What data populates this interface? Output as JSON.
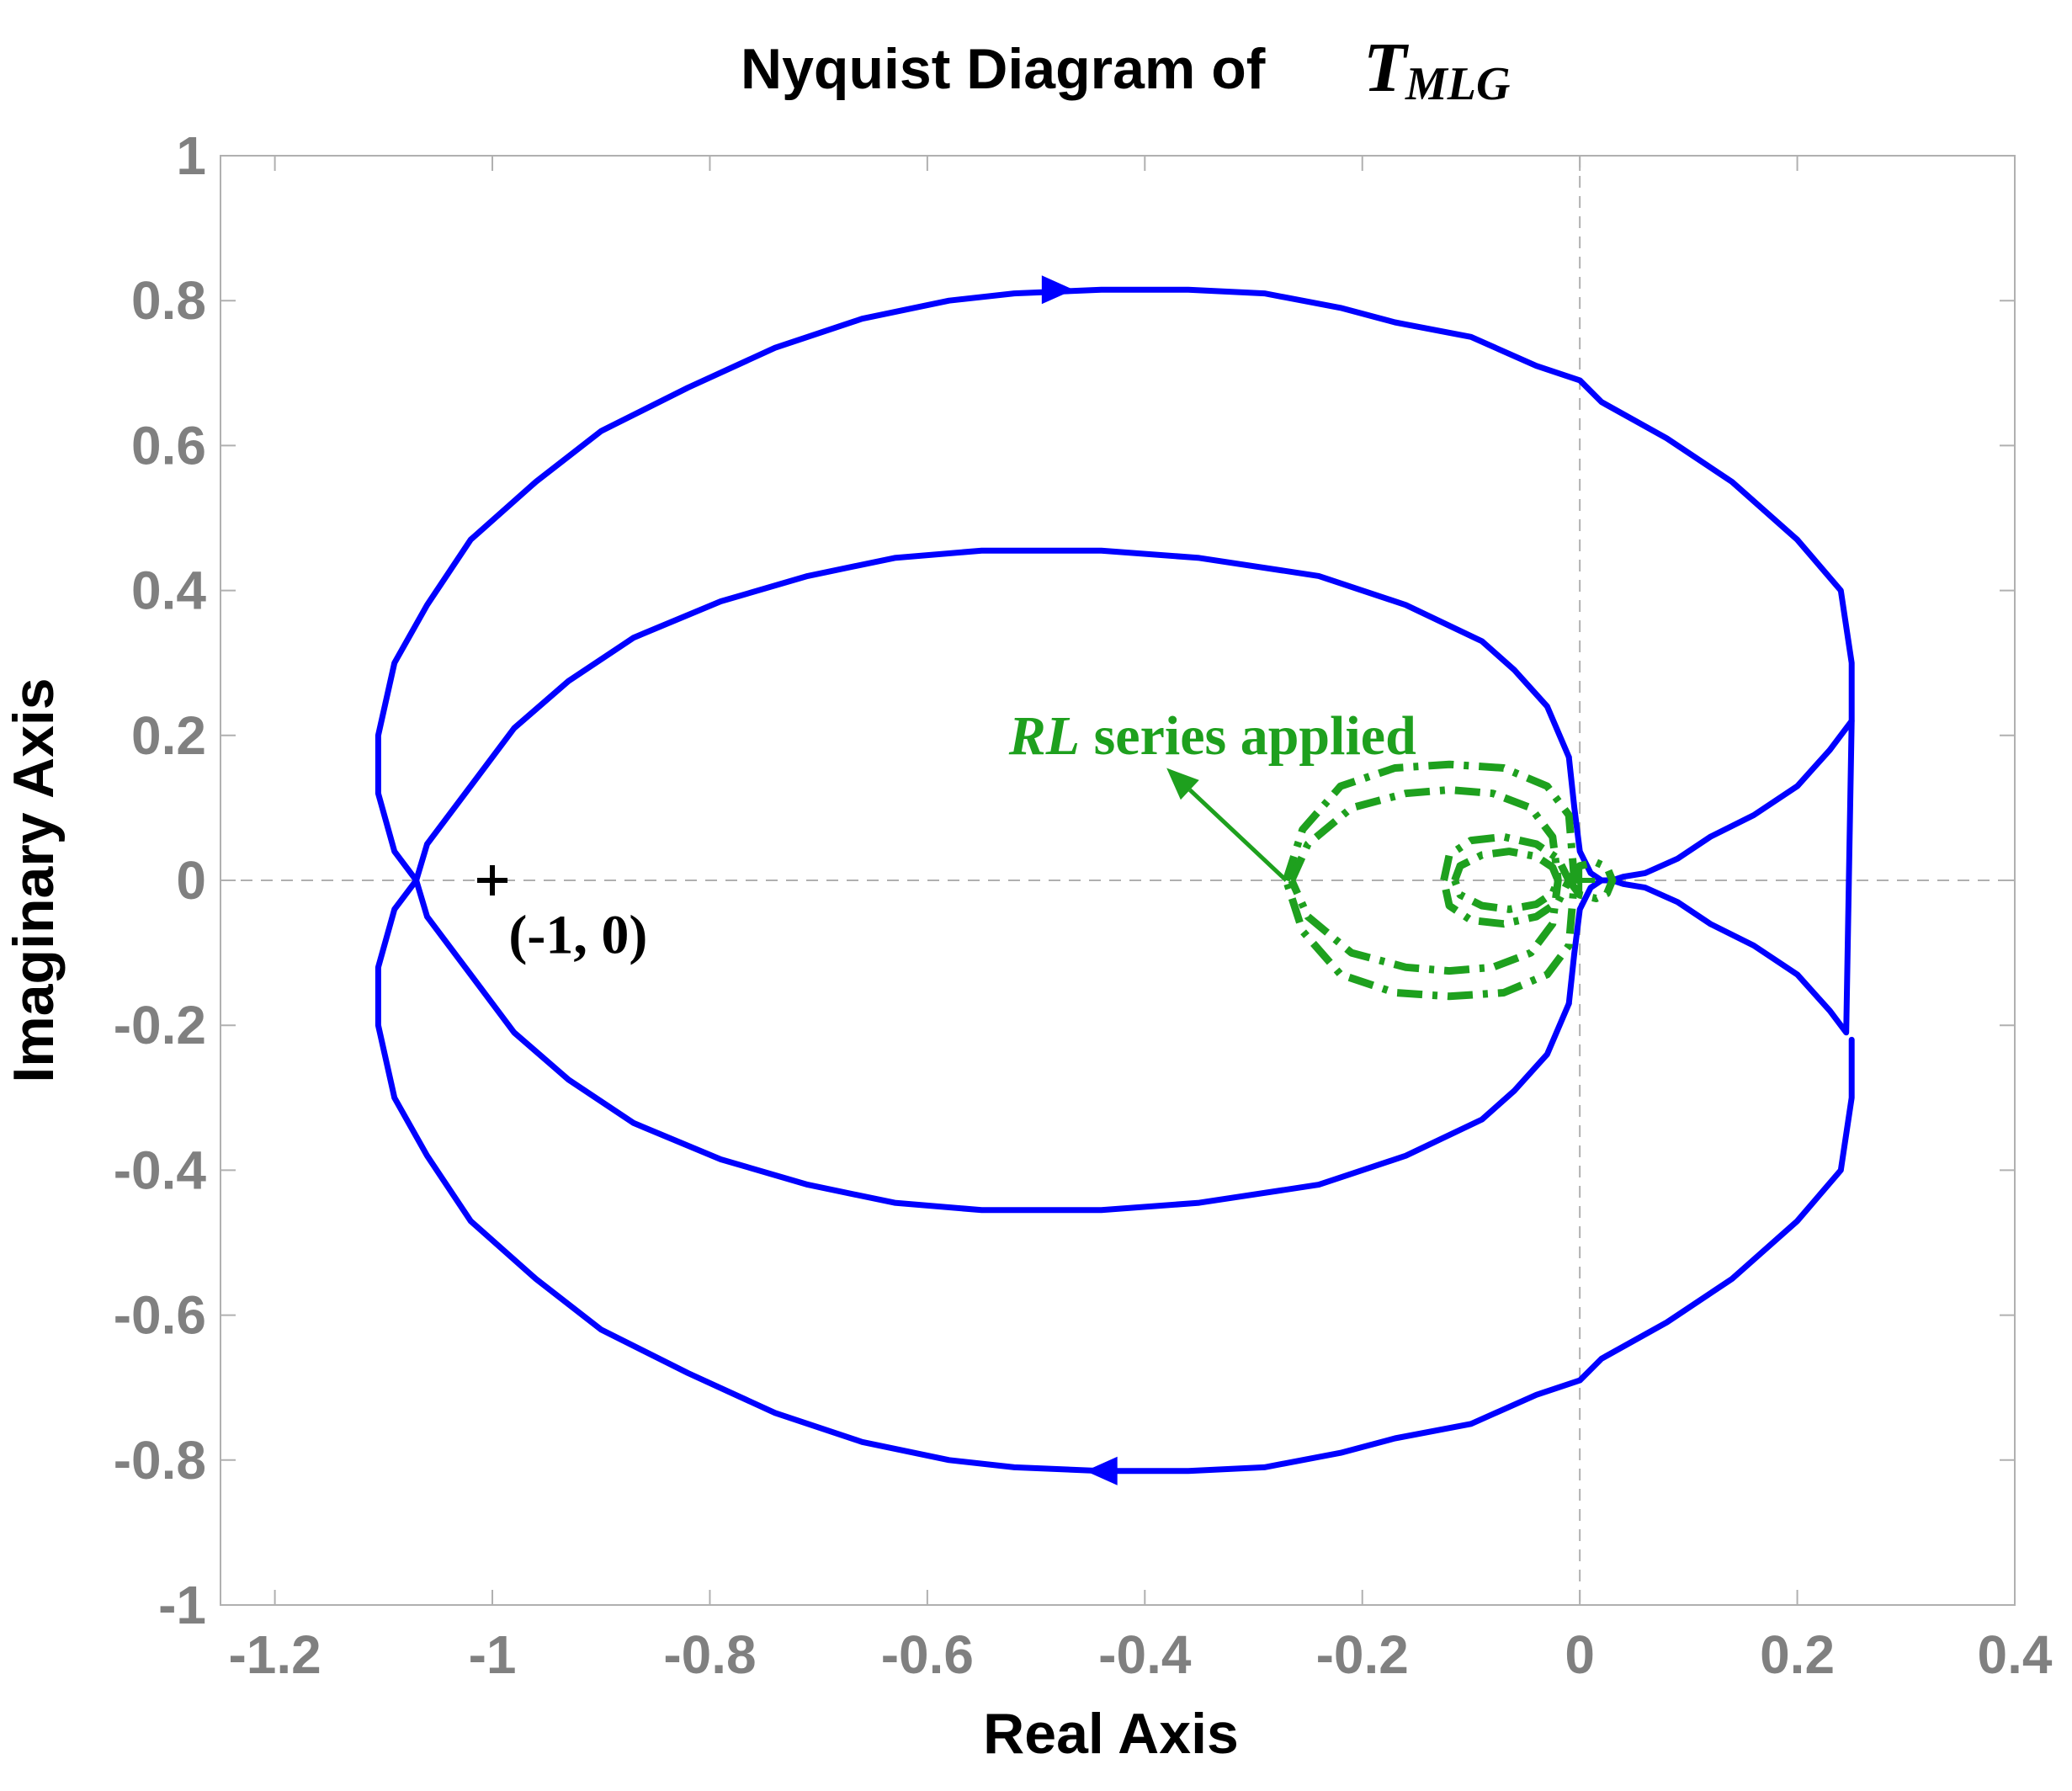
{
  "chart_data": {
    "type": "line",
    "title_text": "Nyquist Diagram of",
    "title_symbol": "T",
    "title_subscript": "MLG",
    "xlabel": "Real Axis",
    "ylabel": "Imaginary Axis",
    "xlim": [
      -1.25,
      0.4
    ],
    "ylim": [
      -1,
      1
    ],
    "xticks": [
      -1.2,
      -1,
      -0.8,
      -0.6,
      -0.4,
      -0.2,
      0,
      0.2,
      0.4
    ],
    "xtick_labels": [
      "-1.2",
      "-1",
      "-0.8",
      "-0.6",
      "-0.4",
      "-0.2",
      "0",
      "0.2",
      "0.4"
    ],
    "yticks": [
      -1,
      -0.8,
      -0.6,
      -0.4,
      -0.2,
      0,
      0.2,
      0.4,
      0.6,
      0.8,
      1
    ],
    "ytick_labels": [
      "-1",
      "-0.8",
      "-0.6",
      "-0.4",
      "-0.2",
      "0",
      "0.2",
      "0.4",
      "0.6",
      "0.8",
      "1"
    ],
    "grid": false,
    "zero_lines": true,
    "series": [
      {
        "style": "solid",
        "color": "#0000ff",
        "x": [
          0.25,
          0.25,
          0.24,
          0.2,
          0.14,
          0.08,
          0.02,
          0.0,
          -0.04,
          -0.1,
          -0.17,
          -0.22,
          -0.29,
          -0.36,
          -0.44,
          -0.52,
          -0.58,
          -0.66,
          -0.74,
          -0.82,
          -0.9,
          -0.96,
          -1.02,
          -1.06,
          -1.09,
          -1.105,
          -1.105,
          -1.09,
          -1.07,
          -1.06,
          -1.02,
          -0.98,
          -0.93,
          -0.87,
          -0.79,
          -0.71,
          -0.63,
          -0.55,
          -0.44,
          -0.35,
          -0.24,
          -0.16,
          -0.09,
          -0.06,
          -0.03,
          -0.01
        ],
        "y": [
          0.22,
          0.3,
          0.4,
          0.47,
          0.55,
          0.61,
          0.66,
          0.69,
          0.71,
          0.75,
          0.77,
          0.79,
          0.81,
          0.815,
          0.815,
          0.81,
          0.8,
          0.775,
          0.735,
          0.68,
          0.62,
          0.55,
          0.47,
          0.38,
          0.3,
          0.2,
          0.12,
          0.04,
          0.0,
          -0.05,
          -0.13,
          -0.21,
          -0.275,
          -0.335,
          -0.385,
          -0.42,
          -0.445,
          -0.455,
          -0.455,
          -0.445,
          -0.42,
          -0.38,
          -0.33,
          -0.29,
          -0.24,
          -0.17
        ]
      },
      {
        "style": "solid",
        "color": "#0000ff",
        "x": [
          0.25,
          0.25,
          0.24,
          0.2,
          0.14,
          0.08,
          0.02,
          0.0,
          -0.04,
          -0.1,
          -0.17,
          -0.22,
          -0.29,
          -0.36,
          -0.44,
          -0.52,
          -0.58,
          -0.66,
          -0.74,
          -0.82,
          -0.9,
          -0.96,
          -1.02,
          -1.06,
          -1.09,
          -1.105,
          -1.105,
          -1.09,
          -1.07,
          -1.06,
          -1.02,
          -0.98,
          -0.93,
          -0.87,
          -0.79,
          -0.71,
          -0.63,
          -0.55,
          -0.44,
          -0.35,
          -0.24,
          -0.16,
          -0.09,
          -0.06,
          -0.03,
          -0.01
        ],
        "y": [
          -0.22,
          -0.3,
          -0.4,
          -0.47,
          -0.55,
          -0.61,
          -0.66,
          -0.69,
          -0.71,
          -0.75,
          -0.77,
          -0.79,
          -0.81,
          -0.815,
          -0.815,
          -0.81,
          -0.8,
          -0.775,
          -0.735,
          -0.68,
          -0.62,
          -0.55,
          -0.47,
          -0.38,
          -0.3,
          -0.2,
          -0.12,
          -0.04,
          0.0,
          0.05,
          0.13,
          0.21,
          0.275,
          0.335,
          0.385,
          0.42,
          0.445,
          0.455,
          0.455,
          0.445,
          0.42,
          0.38,
          0.33,
          0.29,
          0.24,
          0.17
        ]
      },
      {
        "style": "solid",
        "color": "#0000ff",
        "x": [
          -0.01,
          -0.005,
          0.0,
          0.01,
          0.02,
          0.03,
          0.04,
          0.06,
          0.09,
          0.12,
          0.16,
          0.2,
          0.23,
          0.245,
          0.25,
          0.245,
          0.23,
          0.2,
          0.16,
          0.12,
          0.09,
          0.06,
          0.04,
          0.03,
          0.02,
          0.01,
          0.0,
          -0.005,
          -0.01
        ],
        "y": [
          -0.17,
          -0.1,
          -0.04,
          -0.01,
          0.0,
          0.0,
          0.005,
          0.01,
          0.03,
          0.06,
          0.09,
          0.13,
          0.18,
          0.21,
          0.22,
          -0.21,
          -0.18,
          -0.13,
          -0.09,
          -0.06,
          -0.03,
          -0.01,
          -0.005,
          0.0,
          0.0,
          0.01,
          0.04,
          0.1,
          0.17
        ]
      },
      {
        "style": "dashdot",
        "color": "#1ea01e",
        "x": [
          -0.27,
          -0.255,
          -0.22,
          -0.17,
          -0.12,
          -0.07,
          -0.03,
          -0.01,
          -0.005,
          -0.01,
          -0.03,
          -0.07,
          -0.12,
          -0.17,
          -0.22,
          -0.255,
          -0.27
        ],
        "y": [
          0.0,
          0.07,
          0.13,
          0.155,
          0.16,
          0.155,
          0.13,
          0.09,
          0.0,
          -0.09,
          -0.13,
          -0.155,
          -0.16,
          -0.155,
          -0.13,
          -0.07,
          0.0
        ]
      },
      {
        "style": "dashdot",
        "color": "#1ea01e",
        "x": [
          -0.265,
          -0.25,
          -0.21,
          -0.16,
          -0.12,
          -0.08,
          -0.045,
          -0.025,
          -0.02,
          -0.025,
          -0.045,
          -0.08,
          -0.12,
          -0.16,
          -0.21,
          -0.25,
          -0.265
        ],
        "y": [
          0.0,
          0.05,
          0.1,
          0.12,
          0.125,
          0.12,
          0.1,
          0.06,
          0.0,
          -0.06,
          -0.1,
          -0.12,
          -0.125,
          -0.12,
          -0.1,
          -0.05,
          0.0
        ]
      },
      {
        "style": "dashdot",
        "color": "#1ea01e",
        "x": [
          -0.125,
          -0.12,
          -0.1,
          -0.07,
          -0.04,
          -0.02,
          -0.01,
          -0.02,
          -0.04,
          -0.07,
          -0.1,
          -0.12,
          -0.125
        ],
        "y": [
          0.0,
          0.035,
          0.055,
          0.06,
          0.05,
          0.03,
          0.0,
          -0.03,
          -0.05,
          -0.06,
          -0.055,
          -0.035,
          0.0
        ]
      },
      {
        "style": "dashdot",
        "color": "#1ea01e",
        "x": [
          -0.115,
          -0.11,
          -0.09,
          -0.065,
          -0.04,
          -0.025,
          -0.02,
          -0.025,
          -0.04,
          -0.065,
          -0.09,
          -0.11,
          -0.115
        ],
        "y": [
          0.0,
          0.02,
          0.035,
          0.04,
          0.033,
          0.018,
          0.0,
          -0.018,
          -0.033,
          -0.04,
          -0.035,
          -0.02,
          0.0
        ]
      },
      {
        "style": "dashdot",
        "color": "#1ea01e",
        "x": [
          -0.01,
          0.0,
          0.015,
          0.025,
          0.03,
          0.025,
          0.015,
          0.0,
          -0.01
        ],
        "y": [
          0.0,
          0.02,
          0.025,
          0.018,
          0.0,
          -0.018,
          -0.025,
          -0.02,
          0.0
        ]
      }
    ],
    "direction_arrows": [
      {
        "x": -0.47,
        "y": 0.815,
        "direction": "right",
        "color": "#0000ff"
      },
      {
        "x": -0.45,
        "y": -0.815,
        "direction": "left",
        "color": "#0000ff"
      }
    ],
    "markers": [
      {
        "x": -1,
        "y": 0,
        "symbol": "+",
        "color": "#000000"
      },
      {
        "x": 0.0,
        "y": 0.0,
        "symbol": "+",
        "color": "#1ea01e"
      }
    ],
    "annotations": [
      {
        "text_italic": "RL",
        "text": " series applied",
        "color": "#1ea01e",
        "x": -0.525,
        "y": 0.2
      },
      {
        "text": "(-1, 0)",
        "color": "#000000",
        "x": -0.985,
        "y": -0.075
      }
    ],
    "annotation_arrow": {
      "from": [
        -0.27,
        0.0
      ],
      "to": [
        -0.38,
        0.155
      ],
      "color": "#1ea01e"
    }
  }
}
